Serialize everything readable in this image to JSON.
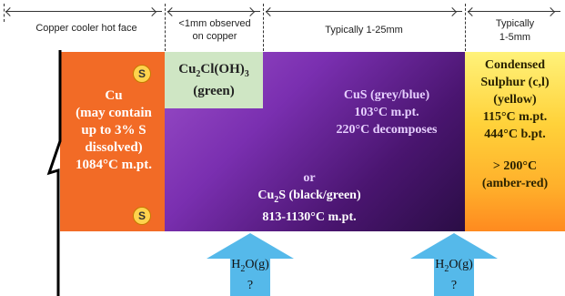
{
  "header": {
    "copper_face": "Copper cooler hot face",
    "observed_line1": "<1mm observed",
    "observed_line2": "on copper",
    "typical_range": "Typically 1-25mm",
    "sulphur_line1": "Typically",
    "sulphur_line2": "1-5mm"
  },
  "copper": {
    "badge": "S",
    "line1": "Cu",
    "line2": "(may contain",
    "line3": "up to 3% S",
    "line4": "dissolved)",
    "line5": "1084°C m.pt."
  },
  "green_box": {
    "formula_main": "Cu",
    "formula_sub": "2",
    "formula_rest": "Cl(OH)",
    "formula_sub2": "3",
    "note": "(green)"
  },
  "cus": {
    "line1": "CuS (grey/blue)",
    "line2": "103°C m.pt.",
    "line3": "220°C decomposes"
  },
  "cu2s": {
    "or": "or",
    "formula_main": "Cu",
    "formula_sub": "2",
    "formula_rest": "S (black/green)",
    "line2": "813-1130°C m.pt."
  },
  "sulphur": {
    "line1": "Condensed",
    "line2": "Sulphur (c,l)",
    "line3": "(yellow)",
    "line4": "115°C m.pt.",
    "line5": "444°C b.pt.",
    "line6": "> 200°C",
    "line7": "(amber-red)"
  },
  "water_arrow": {
    "formula_main": "H",
    "formula_sub": "2",
    "formula_rest": "O(g)",
    "question": "?"
  },
  "colors": {
    "copper": "#f26b26",
    "green_box": "#cfe6c4",
    "arrow": "#55b9ea"
  }
}
